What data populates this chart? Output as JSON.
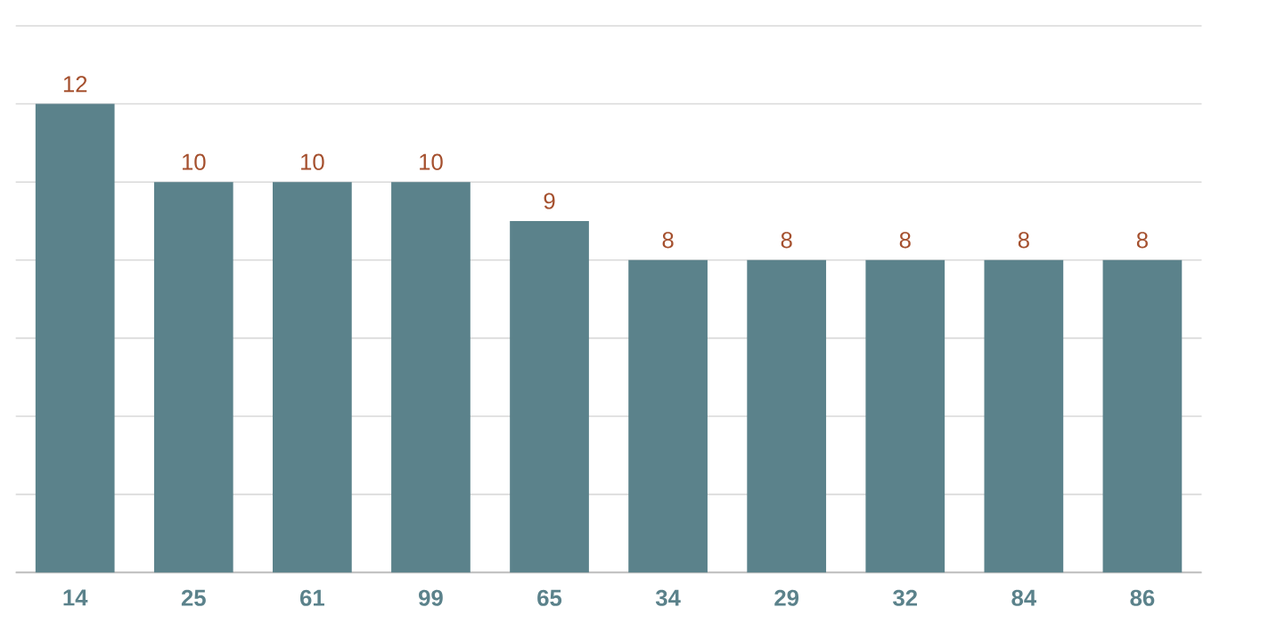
{
  "chart_data": {
    "type": "bar",
    "categories": [
      "14",
      "25",
      "61",
      "99",
      "65",
      "34",
      "29",
      "32",
      "84",
      "86"
    ],
    "values": [
      12,
      10,
      10,
      10,
      9,
      8,
      8,
      8,
      8,
      8
    ],
    "value_labels": [
      "12",
      "10",
      "10",
      "10",
      "9",
      "8",
      "8",
      "8",
      "8",
      "8"
    ],
    "color": "#5b828b",
    "yticks": [
      {
        "value": 0,
        "label": null
      },
      {
        "value": 2,
        "label": null
      },
      {
        "value": 4,
        "label": null
      },
      {
        "value": 6,
        "label": null
      },
      {
        "value": 8,
        "label": null
      },
      {
        "value": 10,
        "label": null
      },
      {
        "value": 12,
        "label": null
      },
      {
        "value": 14,
        "label": null
      }
    ],
    "tick_labels": "x",
    "grid": "y"
  }
}
